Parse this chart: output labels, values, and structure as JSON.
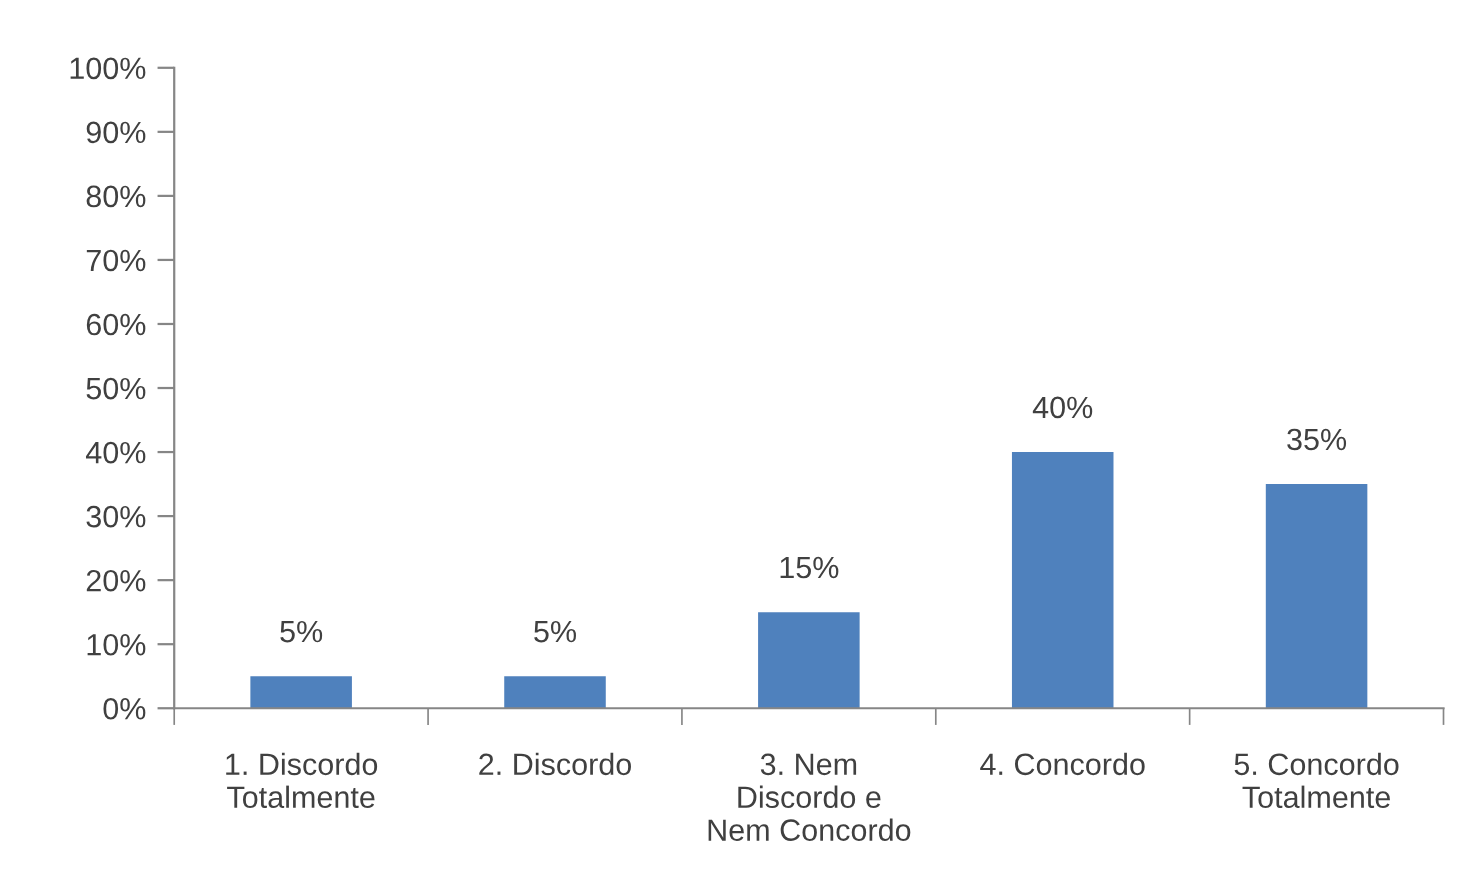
{
  "chart_data": {
    "type": "bar",
    "categories": [
      "1. Discordo\nTotalmente",
      "2. Discordo",
      "3. Nem\nDiscordo e\nNem Concordo",
      "4. Concordo",
      "5. Concordo\nTotalmente"
    ],
    "values": [
      5,
      5,
      15,
      40,
      35
    ],
    "value_labels": [
      "5%",
      "5%",
      "15%",
      "40%",
      "35%"
    ],
    "color": "#4f81bd",
    "ylim": [
      0,
      100
    ],
    "yticks": [
      {
        "value": 0,
        "label": "0%"
      },
      {
        "value": 10,
        "label": "10%"
      },
      {
        "value": 20,
        "label": "20%"
      },
      {
        "value": 30,
        "label": "30%"
      },
      {
        "value": 40,
        "label": "40%"
      },
      {
        "value": 50,
        "label": "50%"
      },
      {
        "value": 60,
        "label": "60%"
      },
      {
        "value": 70,
        "label": "70%"
      },
      {
        "value": 80,
        "label": "80%"
      },
      {
        "value": 90,
        "label": "90%"
      },
      {
        "value": 100,
        "label": "100%"
      }
    ],
    "grid": false,
    "legend": false
  }
}
